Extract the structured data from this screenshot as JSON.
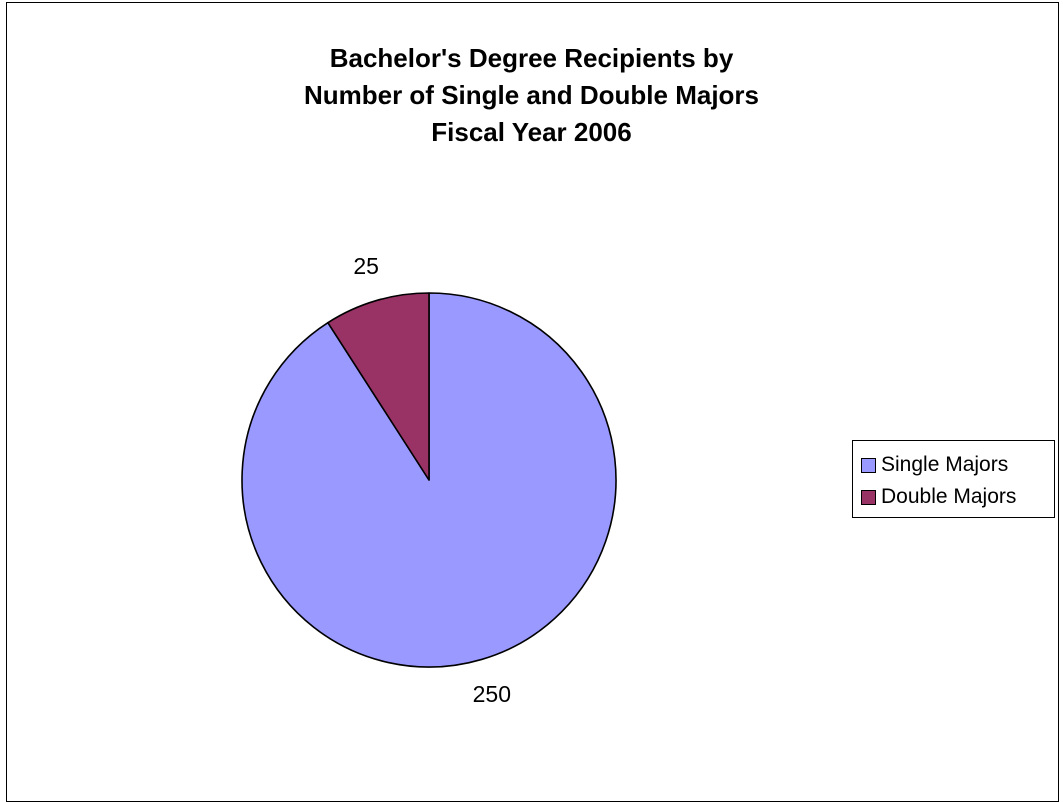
{
  "chart_data": {
    "type": "pie",
    "title": [
      "Bachelor's Degree Recipients by",
      "Number of Single and Double Majors",
      "Fiscal Year 2006"
    ],
    "categories": [
      "Single Majors",
      "Double Majors"
    ],
    "values": [
      250,
      25
    ],
    "colors": [
      "#9999ff",
      "#993366"
    ],
    "data_labels": [
      "250",
      "25"
    ],
    "legend_position": "right"
  }
}
